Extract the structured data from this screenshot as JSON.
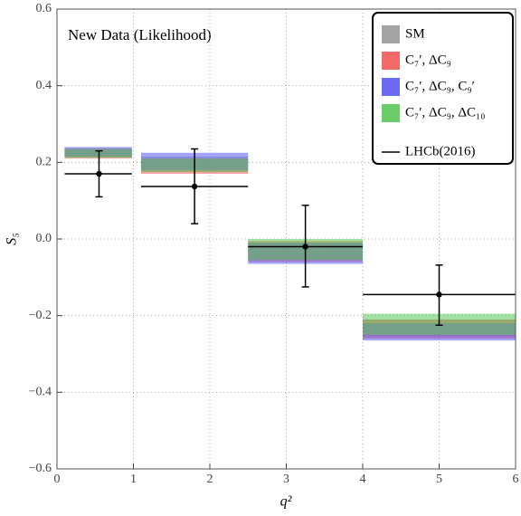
{
  "chart_data": {
    "type": "band",
    "annotation": "New Data (Likelihood)",
    "xlabel": "q²",
    "ylabel": "S₅",
    "xlim": [
      0,
      6
    ],
    "ylim": [
      -0.6,
      0.6
    ],
    "xticks": [
      0,
      1,
      2,
      3,
      4,
      5,
      6
    ],
    "yticks": [
      {
        "value": -0.6,
        "label": "−0.6"
      },
      {
        "value": -0.4,
        "label": "−0.4"
      },
      {
        "value": -0.2,
        "label": "−0.2"
      },
      {
        "value": 0,
        "label": "0.0"
      },
      0.2,
      0.4,
      0.6
    ],
    "grid": true,
    "legend": "upper right",
    "x_low": [
      0.1,
      1.1,
      2.5,
      4
    ],
    "x_high": [
      0.98,
      2.5,
      4,
      6
    ],
    "series": [
      {
        "name": "SM",
        "color": "#9a9a9a",
        "low": [
          0.213,
          0.175,
          -0.055,
          -0.255
        ],
        "high": [
          0.237,
          0.215,
          -0.01,
          -0.21
        ]
      },
      {
        "name": "C₇′, ΔC₉",
        "color": "#f25a5a",
        "low": [
          0.21,
          0.17,
          -0.06,
          -0.26
        ],
        "high": [
          0.235,
          0.21,
          -0.005,
          -0.21
        ]
      },
      {
        "name": "C₇′, ΔC₉, C₉′",
        "color": "#5a5af2",
        "low": [
          0.215,
          0.18,
          -0.065,
          -0.265
        ],
        "high": [
          0.24,
          0.225,
          -0.01,
          -0.22
        ]
      },
      {
        "name": "C₇′, ΔC₉, ΔC₁₀",
        "color": "#5ac85a",
        "low": [
          0.212,
          0.175,
          -0.055,
          -0.25
        ],
        "high": [
          0.235,
          0.21,
          0,
          -0.195
        ]
      }
    ],
    "points": {
      "name": "LHCb(2016)",
      "color": "#000000",
      "x": [
        0.55,
        1.8,
        3.25,
        5
      ],
      "y": [
        0.17,
        0.137,
        -0.02,
        -0.145
      ],
      "err_low": [
        0.06,
        0.097,
        0.105,
        0.08
      ],
      "err_high": [
        0.06,
        0.098,
        0.108,
        0.077
      ]
    }
  }
}
